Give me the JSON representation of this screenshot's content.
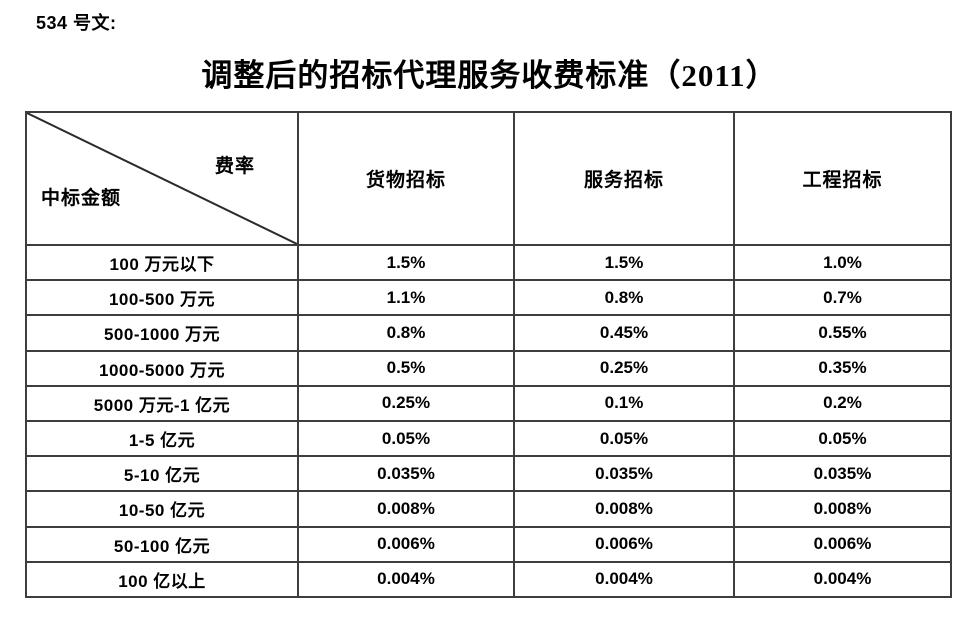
{
  "page": {
    "doc_label": "534 号文:",
    "title": "调整后的招标代理服务收费标准（2011）"
  },
  "table": {
    "corner": {
      "top_right": "费率",
      "bottom_left": "中标金额"
    },
    "columns": [
      "货物招标",
      "服务招标",
      "工程招标"
    ],
    "rows": [
      {
        "amount": "100 万元以下",
        "rates": [
          "1.5%",
          "1.5%",
          "1.0%"
        ]
      },
      {
        "amount": "100-500 万元",
        "rates": [
          "1.1%",
          "0.8%",
          "0.7%"
        ]
      },
      {
        "amount": "500-1000 万元",
        "rates": [
          "0.8%",
          "0.45%",
          "0.55%"
        ]
      },
      {
        "amount": "1000-5000 万元",
        "rates": [
          "0.5%",
          "0.25%",
          "0.35%"
        ]
      },
      {
        "amount": "5000 万元-1 亿元",
        "rates": [
          "0.25%",
          "0.1%",
          "0.2%"
        ]
      },
      {
        "amount": "1-5 亿元",
        "rates": [
          "0.05%",
          "0.05%",
          "0.05%"
        ]
      },
      {
        "amount": "5-10 亿元",
        "rates": [
          "0.035%",
          "0.035%",
          "0.035%"
        ]
      },
      {
        "amount": "10-50 亿元",
        "rates": [
          "0.008%",
          "0.008%",
          "0.008%"
        ]
      },
      {
        "amount": "50-100 亿元",
        "rates": [
          "0.006%",
          "0.006%",
          "0.006%"
        ]
      },
      {
        "amount": "100 亿以上",
        "rates": [
          "0.004%",
          "0.004%",
          "0.004%"
        ]
      }
    ],
    "border_color": "#3d3d3d"
  }
}
